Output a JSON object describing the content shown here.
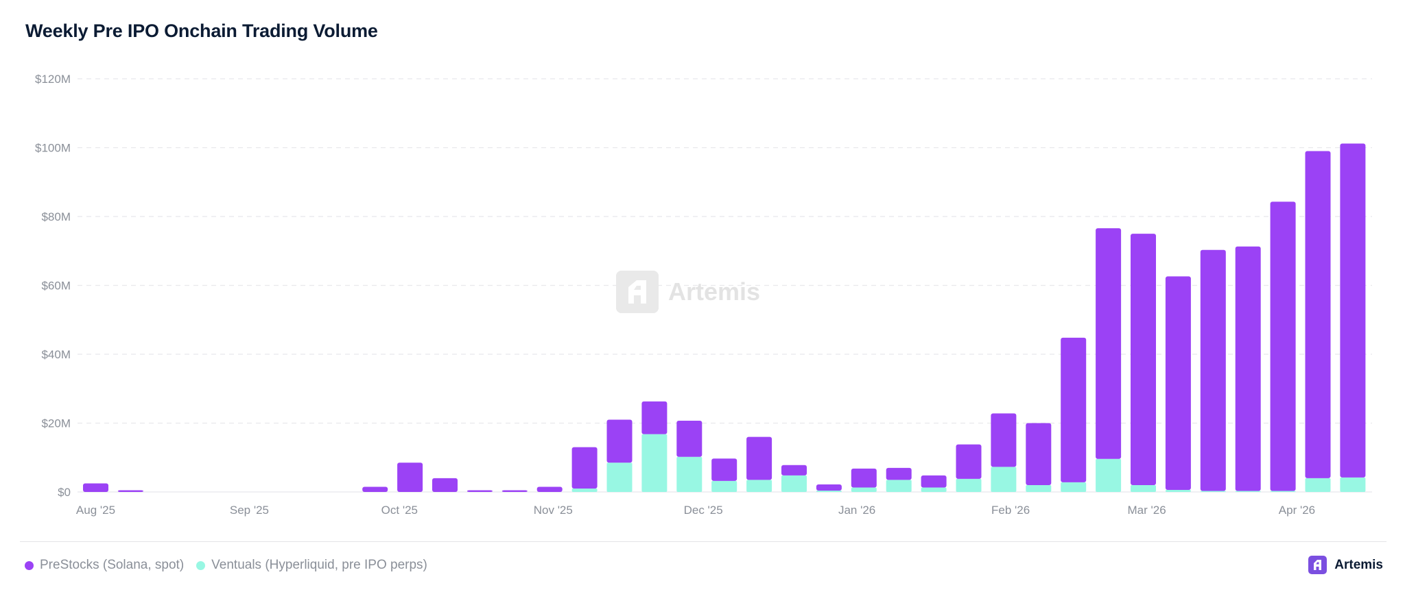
{
  "title": "Weekly Pre IPO Onchain Trading Volume",
  "colors": {
    "prestocks": "#9b42f5",
    "ventuals": "#98f7e3",
    "grid": "#e8e8ec",
    "axis_text": "#8a8f98"
  },
  "watermark": {
    "text": "Artemis",
    "icon": "artemis-logo-icon"
  },
  "brand": {
    "text": "Artemis",
    "icon": "artemis-logo-icon",
    "color": "#7b4fe0"
  },
  "legend": [
    {
      "label": "PreStocks (Solana, spot)",
      "color": "#9b42f5"
    },
    {
      "label": "Ventuals (Hyperliquid, pre IPO perps)",
      "color": "#98f7e3"
    }
  ],
  "chart_data": {
    "type": "bar",
    "stacked": true,
    "title": "Weekly Pre IPO Onchain Trading Volume",
    "ylim": [
      0,
      120
    ],
    "y_unit": "$M",
    "y_ticks": [
      "$0",
      "$20M",
      "$40M",
      "$60M",
      "$80M",
      "$100M",
      "$120M"
    ],
    "x_ticks": [
      {
        "label": "Aug '25",
        "index": 0
      },
      {
        "label": "Sep '25",
        "index": 4.4
      },
      {
        "label": "Oct '25",
        "index": 8.7
      },
      {
        "label": "Nov '25",
        "index": 13.1
      },
      {
        "label": "Dec '25",
        "index": 17.4
      },
      {
        "label": "Jan '26",
        "index": 21.8
      },
      {
        "label": "Feb '26",
        "index": 26.2
      },
      {
        "label": "Mar '26",
        "index": 30.1
      },
      {
        "label": "Apr '26",
        "index": 34.4
      }
    ],
    "grid": true,
    "legend_position": "bottom-left",
    "series": [
      {
        "name": "PreStocks (Solana, spot)",
        "color": "#9b42f5",
        "values": [
          2.5,
          0.5,
          0,
          0,
          0,
          0,
          0,
          0,
          1.5,
          8.5,
          4.0,
          0.5,
          0.5,
          1.5,
          12.0,
          12.5,
          9.5,
          10.5,
          6.5,
          12.5,
          3.0,
          1.8,
          5.5,
          3.5,
          3.5,
          10.0,
          15.5,
          18.0,
          42.0,
          67.0,
          73.0,
          62.0,
          70.0,
          71.0,
          84.0,
          95.0,
          97.0
        ]
      },
      {
        "name": "Ventuals (Hyperliquid, pre IPO perps)",
        "color": "#98f7e3",
        "values": [
          0,
          0,
          0,
          0,
          0,
          0,
          0,
          0,
          0,
          0,
          0,
          0,
          0,
          0,
          1.0,
          8.5,
          16.8,
          10.2,
          3.2,
          3.5,
          4.8,
          0.4,
          1.3,
          3.5,
          1.3,
          3.8,
          7.3,
          2.0,
          2.8,
          9.6,
          2.0,
          0.6,
          0.3,
          0.3,
          0.3,
          4.0,
          4.2
        ]
      }
    ]
  }
}
